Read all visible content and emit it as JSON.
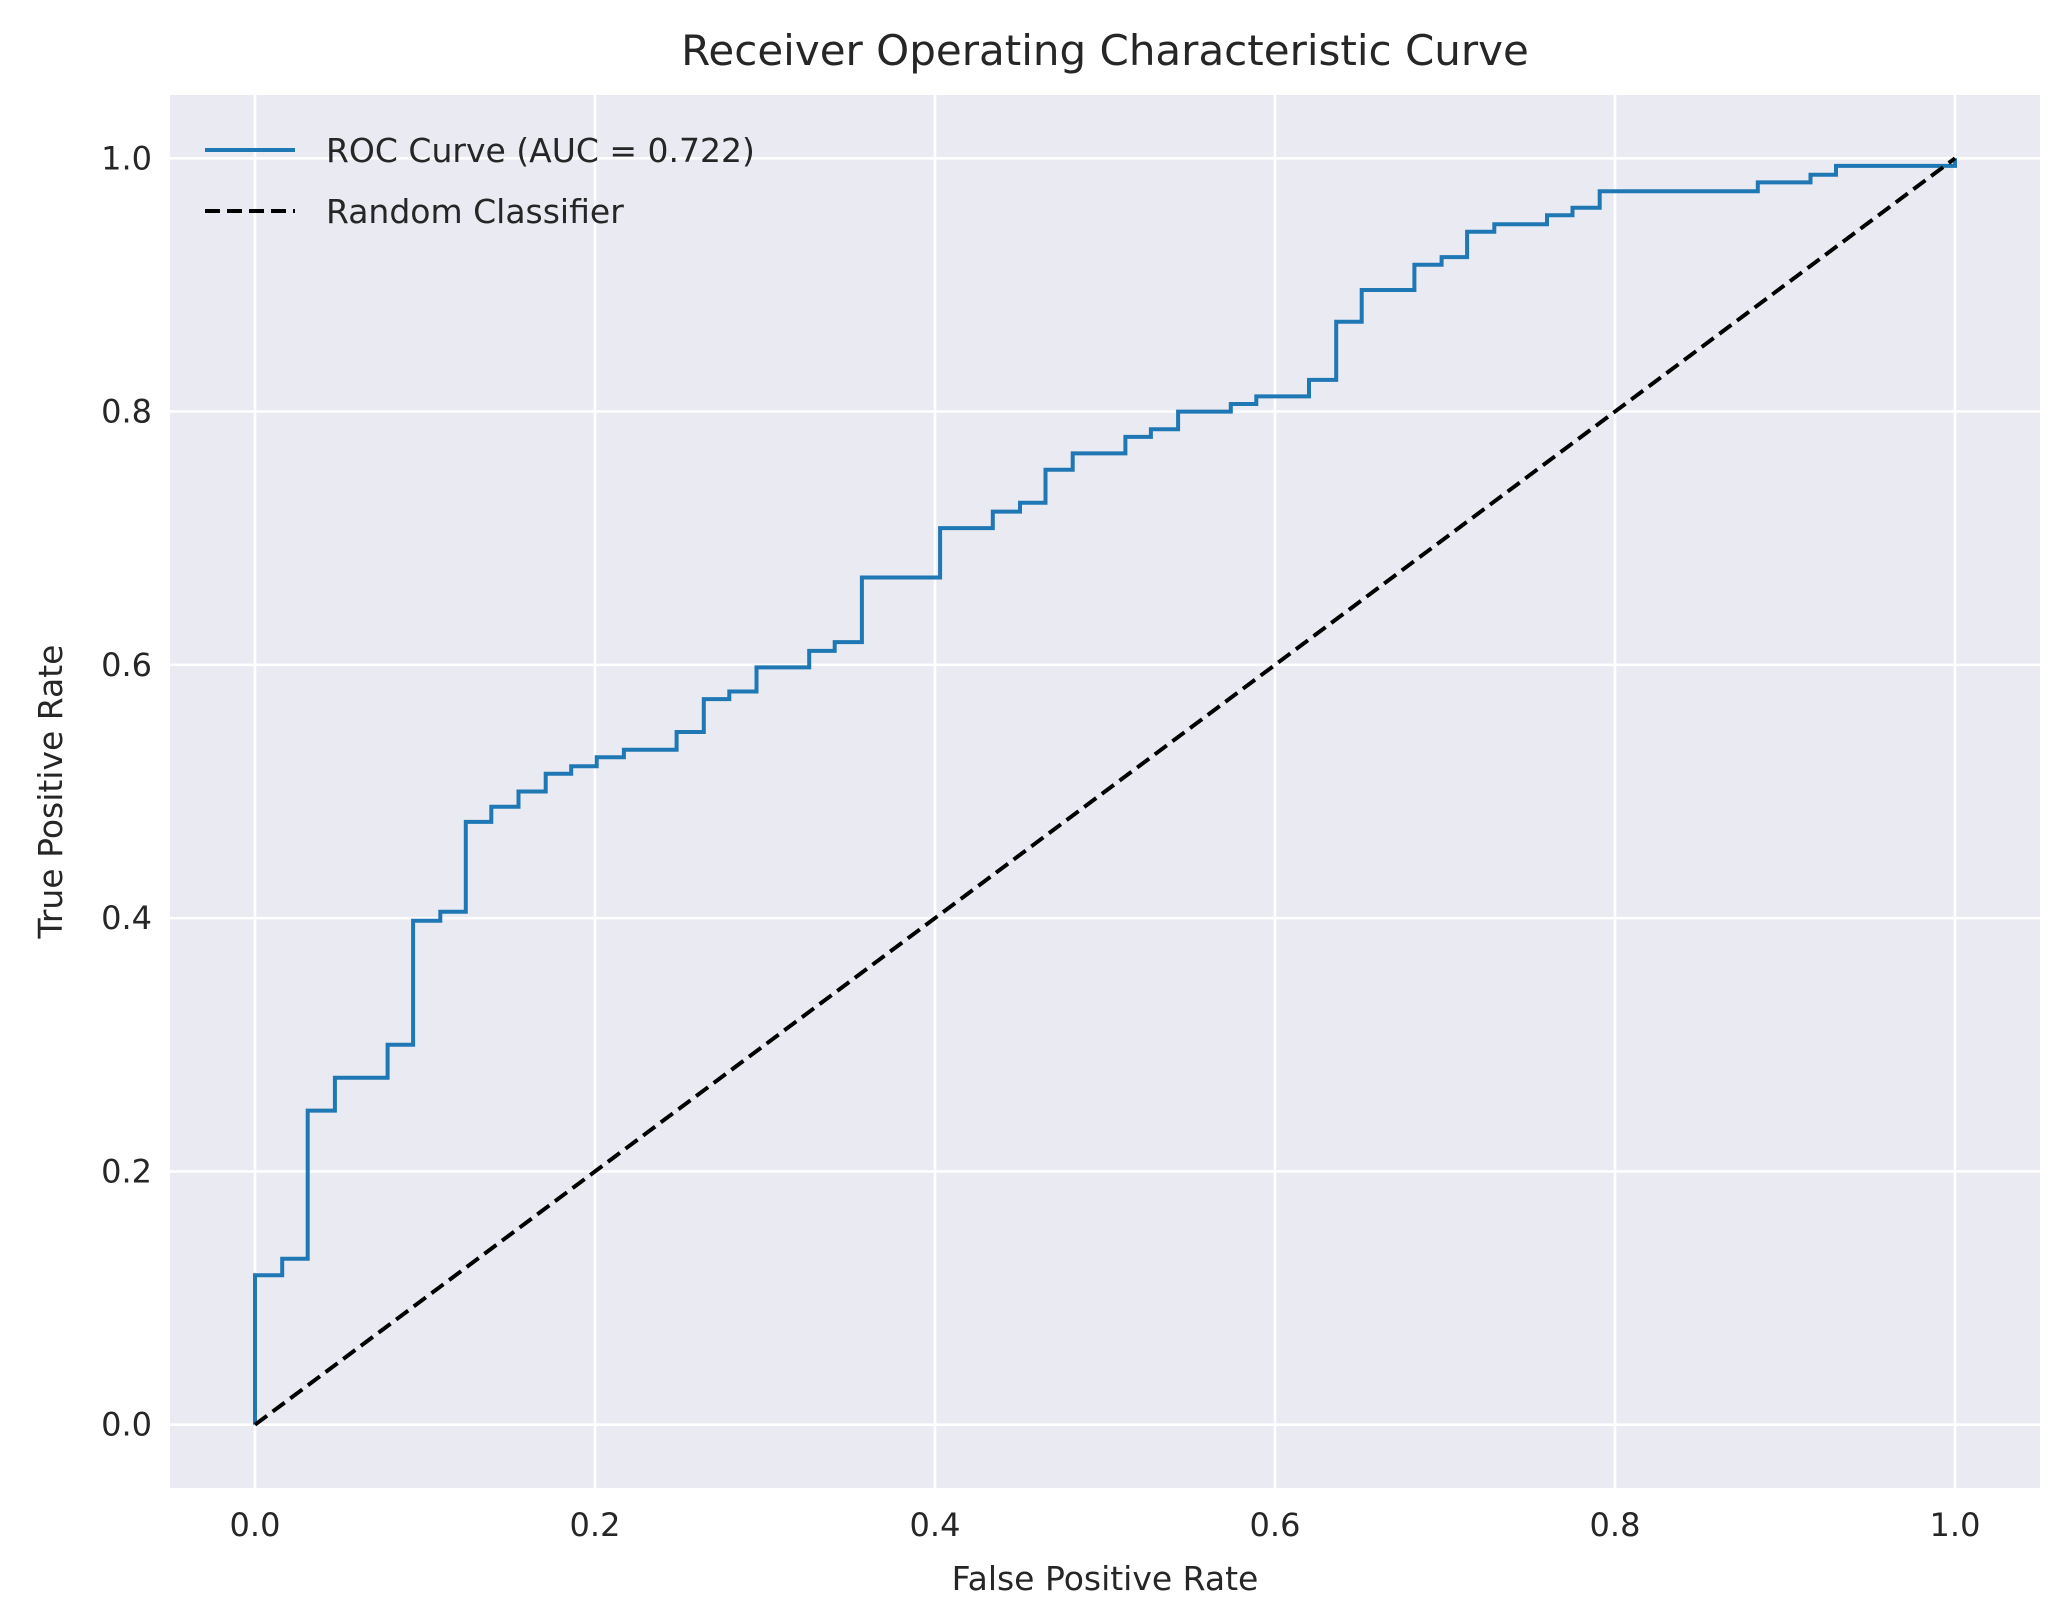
{
  "chart_data": {
    "type": "line",
    "title": "Receiver Operating Characteristic Curve",
    "xlabel": "False Positive Rate",
    "ylabel": "True Positive Rate",
    "xlim": [
      -0.05,
      1.05
    ],
    "ylim": [
      -0.05,
      1.05
    ],
    "xticks": [
      0.0,
      0.2,
      0.4,
      0.6,
      0.8,
      1.0
    ],
    "yticks": [
      0.0,
      0.2,
      0.4,
      0.6,
      0.8,
      1.0
    ],
    "xtick_labels": [
      "0.0",
      "0.2",
      "0.4",
      "0.6",
      "0.8",
      "1.0"
    ],
    "ytick_labels": [
      "0.0",
      "0.2",
      "0.4",
      "0.6",
      "0.8",
      "1.0"
    ],
    "grid": true,
    "legend_position": "top-left",
    "background_color": "#eaeaf2",
    "series": [
      {
        "name": "ROC Curve (AUC = 0.722)",
        "color": "#1f77b4",
        "style": "step",
        "points": [
          [
            0.0,
            0.0
          ],
          [
            0.0,
            0.118
          ],
          [
            0.016,
            0.118
          ],
          [
            0.016,
            0.131
          ],
          [
            0.031,
            0.131
          ],
          [
            0.031,
            0.248
          ],
          [
            0.047,
            0.248
          ],
          [
            0.047,
            0.274
          ],
          [
            0.078,
            0.274
          ],
          [
            0.078,
            0.3
          ],
          [
            0.093,
            0.3
          ],
          [
            0.093,
            0.398
          ],
          [
            0.109,
            0.398
          ],
          [
            0.109,
            0.405
          ],
          [
            0.124,
            0.405
          ],
          [
            0.124,
            0.476
          ],
          [
            0.139,
            0.476
          ],
          [
            0.139,
            0.488
          ],
          [
            0.155,
            0.488
          ],
          [
            0.155,
            0.5
          ],
          [
            0.171,
            0.5
          ],
          [
            0.171,
            0.514
          ],
          [
            0.186,
            0.514
          ],
          [
            0.186,
            0.52
          ],
          [
            0.201,
            0.52
          ],
          [
            0.201,
            0.527
          ],
          [
            0.217,
            0.527
          ],
          [
            0.217,
            0.533
          ],
          [
            0.248,
            0.533
          ],
          [
            0.248,
            0.547
          ],
          [
            0.264,
            0.547
          ],
          [
            0.264,
            0.573
          ],
          [
            0.279,
            0.573
          ],
          [
            0.279,
            0.579
          ],
          [
            0.295,
            0.579
          ],
          [
            0.295,
            0.598
          ],
          [
            0.326,
            0.598
          ],
          [
            0.326,
            0.611
          ],
          [
            0.341,
            0.611
          ],
          [
            0.341,
            0.618
          ],
          [
            0.357,
            0.618
          ],
          [
            0.357,
            0.669
          ],
          [
            0.403,
            0.669
          ],
          [
            0.403,
            0.708
          ],
          [
            0.434,
            0.708
          ],
          [
            0.434,
            0.721
          ],
          [
            0.45,
            0.721
          ],
          [
            0.45,
            0.728
          ],
          [
            0.465,
            0.728
          ],
          [
            0.465,
            0.754
          ],
          [
            0.481,
            0.754
          ],
          [
            0.481,
            0.767
          ],
          [
            0.512,
            0.767
          ],
          [
            0.512,
            0.78
          ],
          [
            0.527,
            0.78
          ],
          [
            0.527,
            0.786
          ],
          [
            0.543,
            0.786
          ],
          [
            0.543,
            0.8
          ],
          [
            0.574,
            0.8
          ],
          [
            0.574,
            0.806
          ],
          [
            0.589,
            0.806
          ],
          [
            0.589,
            0.812
          ],
          [
            0.62,
            0.812
          ],
          [
            0.62,
            0.825
          ],
          [
            0.636,
            0.825
          ],
          [
            0.636,
            0.871
          ],
          [
            0.651,
            0.871
          ],
          [
            0.651,
            0.896
          ],
          [
            0.682,
            0.896
          ],
          [
            0.682,
            0.916
          ],
          [
            0.698,
            0.916
          ],
          [
            0.698,
            0.922
          ],
          [
            0.713,
            0.922
          ],
          [
            0.713,
            0.942
          ],
          [
            0.729,
            0.942
          ],
          [
            0.729,
            0.948
          ],
          [
            0.76,
            0.948
          ],
          [
            0.76,
            0.955
          ],
          [
            0.775,
            0.955
          ],
          [
            0.775,
            0.961
          ],
          [
            0.791,
            0.961
          ],
          [
            0.791,
            0.974
          ],
          [
            0.884,
            0.974
          ],
          [
            0.884,
            0.981
          ],
          [
            0.915,
            0.981
          ],
          [
            0.915,
            0.987
          ],
          [
            0.93,
            0.987
          ],
          [
            0.93,
            0.994
          ],
          [
            1.0,
            0.994
          ],
          [
            1.0,
            1.0
          ]
        ]
      },
      {
        "name": "Random Classifier",
        "color": "#000000",
        "style": "dashed",
        "points": [
          [
            0.0,
            0.0
          ],
          [
            1.0,
            1.0
          ]
        ]
      }
    ]
  }
}
